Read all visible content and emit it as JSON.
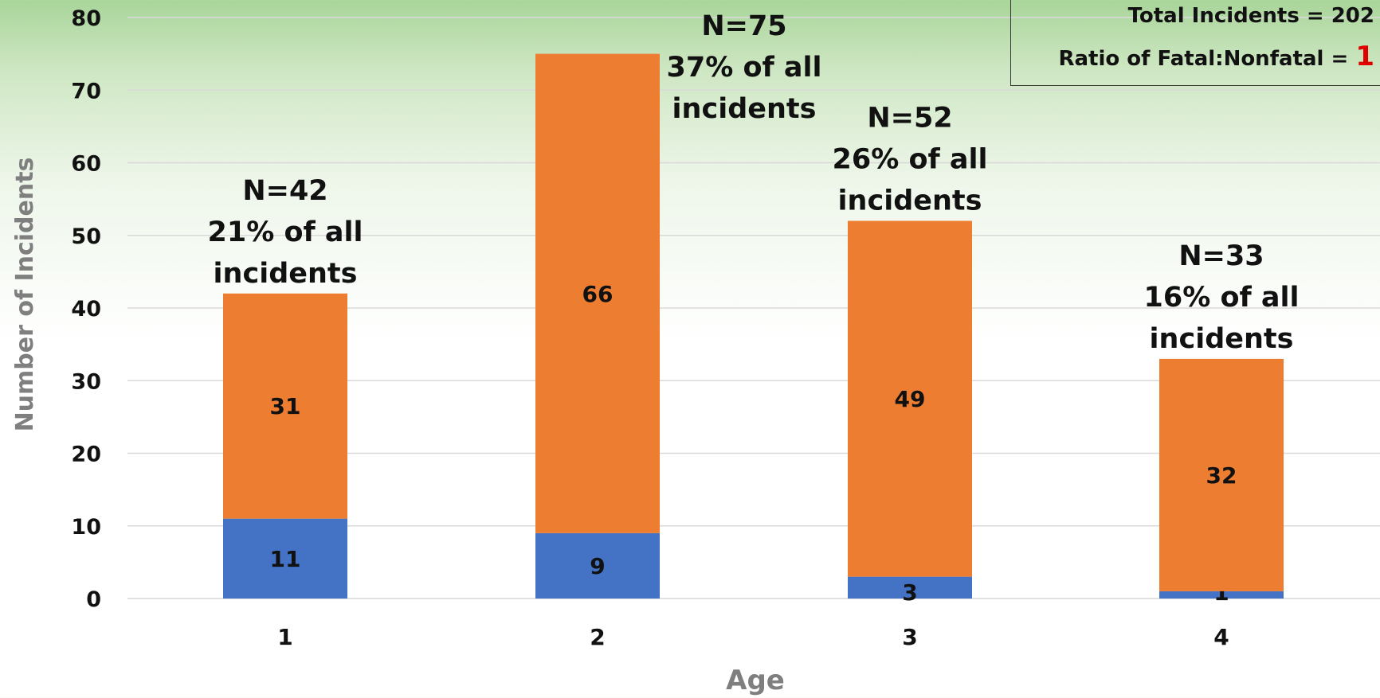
{
  "chart_data": {
    "type": "bar",
    "stacked": true,
    "categories": [
      "1",
      "2",
      "3",
      "4"
    ],
    "series": [
      {
        "values": [
          11,
          9,
          3,
          1
        ],
        "color": "#4472c4"
      },
      {
        "values": [
          31,
          66,
          49,
          32
        ],
        "color": "#ed7d31"
      }
    ],
    "totals": [
      42,
      75,
      52,
      33
    ],
    "annotations": [
      [
        "N=42",
        "21% of all",
        "incidents"
      ],
      [
        "N=75",
        "37% of all",
        "incidents"
      ],
      [
        "N=52",
        "26% of all",
        "incidents"
      ],
      [
        "N=33",
        "16% of all",
        "incidents"
      ]
    ],
    "xlabel": "Age",
    "ylabel": "Number of Incidents",
    "ylim": [
      0,
      80
    ],
    "yticks": [
      0,
      10,
      20,
      30,
      40,
      50,
      60,
      70,
      80
    ],
    "grid": true
  },
  "info_box": {
    "total_line": "Total Incidents = 202",
    "ratio_prefix": "Ratio of Fatal:Nonfatal = ",
    "ratio_value": "1"
  },
  "colors": {
    "gridline": "#d9d9d9",
    "axis_title": "#7f7f7f",
    "text": "#111111",
    "ratio_highlight": "#e00000"
  }
}
